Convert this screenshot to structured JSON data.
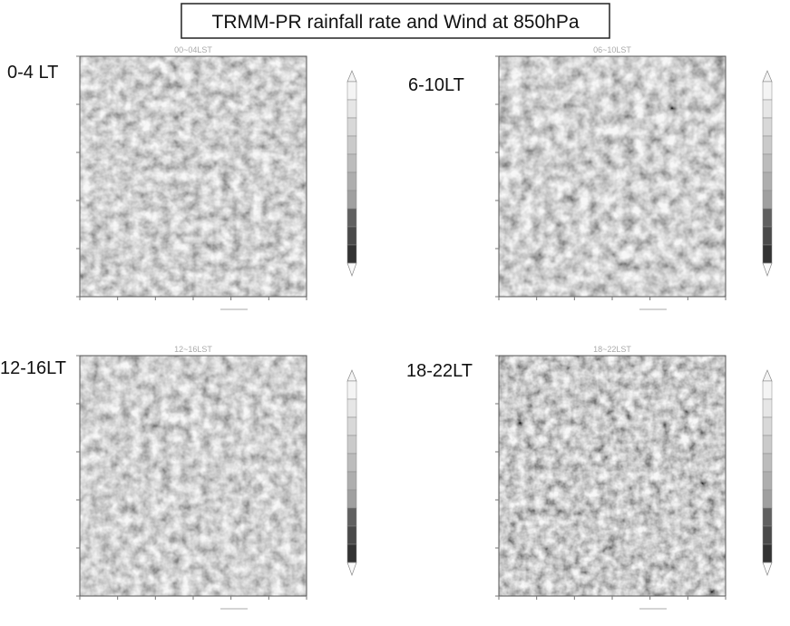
{
  "header": {
    "title": "TRMM-PR rainfall rate and Wind at 850hPa"
  },
  "panels": [
    {
      "label": "0-4 LT",
      "subtitle": "00~04LST"
    },
    {
      "label": "6-10LT",
      "subtitle": "06~10LST"
    },
    {
      "label": "12-16LT",
      "subtitle": "12~16LST"
    },
    {
      "label": "18-22LT",
      "subtitle": "18~22LST"
    }
  ]
}
